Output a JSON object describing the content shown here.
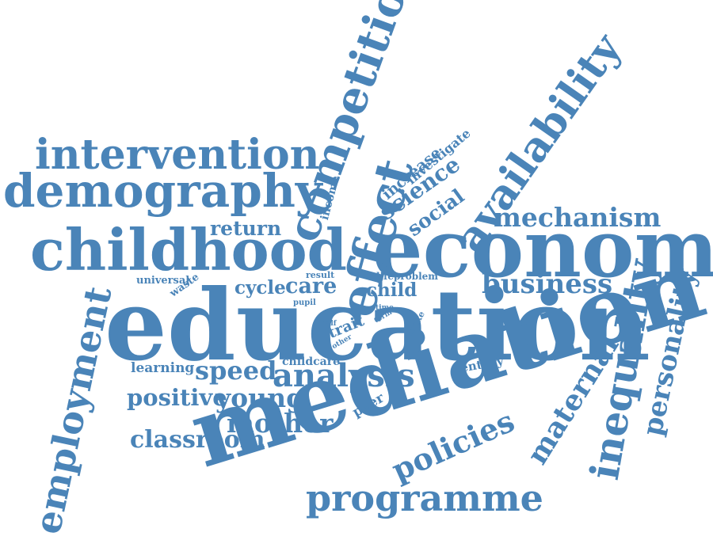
{
  "word_cloud": {
    "color": "#4a84b8",
    "background": "#ffffff",
    "words": [
      {
        "key": "education",
        "text": "education"
      },
      {
        "key": "mediation",
        "text": "mediation"
      },
      {
        "key": "economic",
        "text": "economic"
      },
      {
        "key": "childhood",
        "text": "childhood"
      },
      {
        "key": "demography",
        "text": "demography"
      },
      {
        "key": "intervention",
        "text": "intervention"
      },
      {
        "key": "competition",
        "text": "competition"
      },
      {
        "key": "availability",
        "text": "availability"
      },
      {
        "key": "effect",
        "text": "effect"
      },
      {
        "key": "employment",
        "text": "employment"
      },
      {
        "key": "inequality",
        "text": "inequality"
      },
      {
        "key": "personality",
        "text": "personality"
      },
      {
        "key": "maternal",
        "text": "maternal"
      },
      {
        "key": "policies",
        "text": "policies"
      },
      {
        "key": "programme",
        "text": "programme"
      },
      {
        "key": "mechanism",
        "text": "mechanism"
      },
      {
        "key": "business",
        "text": "business"
      },
      {
        "key": "analysis",
        "text": "analysis"
      },
      {
        "key": "classroom",
        "text": "classroom"
      },
      {
        "key": "positive",
        "text": "positive"
      },
      {
        "key": "young",
        "text": "young"
      },
      {
        "key": "mother",
        "text": "mother"
      },
      {
        "key": "speed",
        "text": "speed"
      },
      {
        "key": "learning",
        "text": "learning"
      },
      {
        "key": "return",
        "text": "return"
      },
      {
        "key": "science",
        "text": "science"
      },
      {
        "key": "social",
        "text": "social"
      },
      {
        "key": "increase",
        "text": "increase"
      },
      {
        "key": "investigate",
        "text": "investigate"
      },
      {
        "key": "income",
        "text": "income"
      },
      {
        "key": "cycle",
        "text": "cycle"
      },
      {
        "key": "care",
        "text": "care"
      },
      {
        "key": "child",
        "text": "child"
      },
      {
        "key": "life",
        "text": "life"
      },
      {
        "key": "problem",
        "text": "problem"
      },
      {
        "key": "result",
        "text": "result"
      },
      {
        "key": "universal",
        "text": "universal"
      },
      {
        "key": "waste",
        "text": "waste"
      },
      {
        "key": "pupil",
        "text": "pupil"
      },
      {
        "key": "trait",
        "text": "trait"
      },
      {
        "key": "half",
        "text": "half"
      },
      {
        "key": "other",
        "text": "other"
      },
      {
        "key": "time",
        "text": "time"
      },
      {
        "key": "term",
        "text": "term"
      },
      {
        "key": "make",
        "text": "make"
      },
      {
        "key": "childcare",
        "text": "childcare"
      },
      {
        "key": "century",
        "text": "century"
      },
      {
        "key": "peer",
        "text": "peer"
      }
    ]
  }
}
